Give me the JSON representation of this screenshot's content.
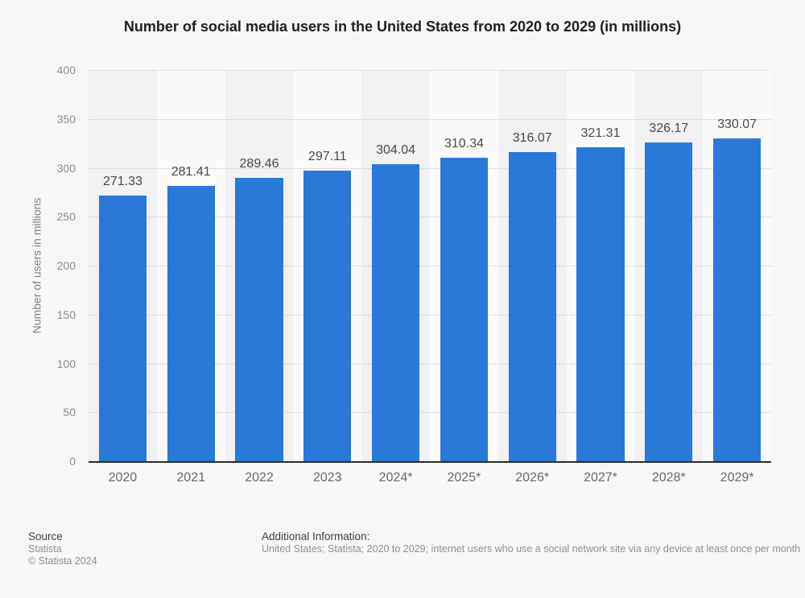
{
  "chart_data": {
    "type": "bar",
    "title": "Number of social media users in the United States from 2020 to 2029 (in millions)",
    "categories": [
      "2020",
      "2021",
      "2022",
      "2023",
      "2024*",
      "2025*",
      "2026*",
      "2027*",
      "2028*",
      "2029*"
    ],
    "values": [
      271.33,
      281.41,
      289.46,
      297.11,
      304.04,
      310.34,
      316.07,
      321.31,
      326.17,
      330.07
    ],
    "value_labels": [
      "271.33",
      "281.41",
      "289.46",
      "297.11",
      "304.04",
      "310.34",
      "316.07",
      "321.31",
      "326.17",
      "330.07"
    ],
    "xlabel": "",
    "ylabel": "Number of users in millions",
    "ylim": [
      0,
      400
    ],
    "ytick_interval": 50,
    "yticks": [
      0,
      50,
      100,
      150,
      200,
      250,
      300,
      350,
      400
    ],
    "grid": "horizontal-dotted",
    "legend": "none"
  },
  "colors": {
    "page_background": "#f7f7f7",
    "bar": "#2a78d8",
    "band_shaded": "#f1f1f3",
    "band_light": "#fafafa",
    "gridline": "#c6c6c6",
    "axis_line": "#2b2b2b"
  },
  "footer": {
    "source_label": "Source",
    "source_name": "Statista",
    "copyright": "© Statista 2024",
    "additional_info_label": "Additional Information:",
    "additional_info": "United States; Statista; 2020 to 2029; internet users who use a social network site via any device at least once per month"
  }
}
